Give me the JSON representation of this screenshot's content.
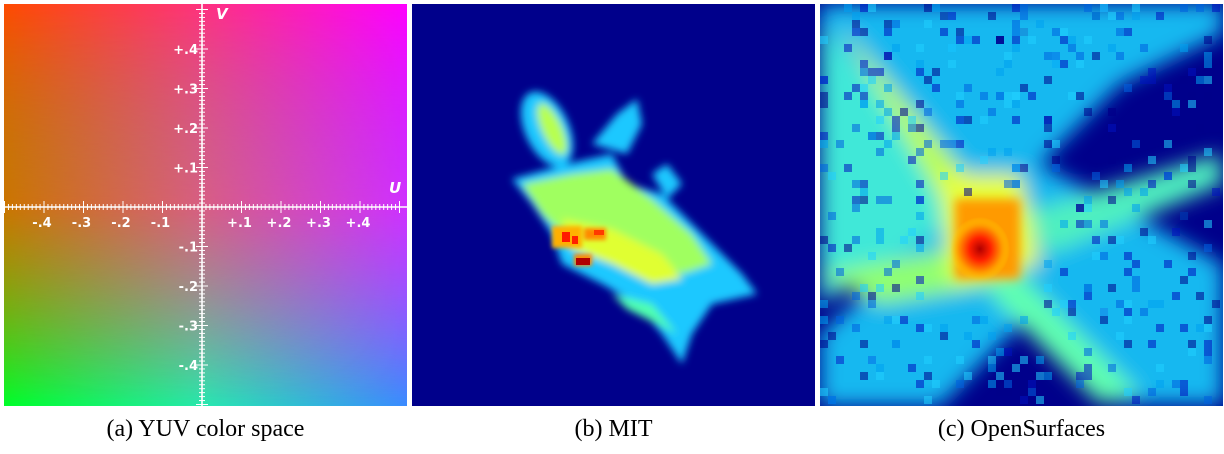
{
  "panels": [
    {
      "id": "a",
      "caption": "(a)  YUV color space"
    },
    {
      "id": "b",
      "caption": "(b)  MIT"
    },
    {
      "id": "c",
      "caption": "(c)  OpenSurfaces"
    }
  ],
  "yuv_plot": {
    "u_label": "U",
    "v_label": "V",
    "u_ticks": [
      "-.4",
      "-.3",
      "-.2",
      "-.1",
      "+.1",
      "+.2",
      "+.3",
      "+.4"
    ],
    "v_ticks": [
      "+.4",
      "+.3",
      "+.2",
      "+.1",
      "-.1",
      "-.2",
      "-.3",
      "-.4"
    ],
    "corner_colors": {
      "top_left": "#ff4a00",
      "top_right": "#ff00ff",
      "bottom_left": "#00ff2a",
      "bottom_right": "#3a8cff"
    }
  },
  "colors": {
    "heatmap_background": "#00008b"
  }
}
